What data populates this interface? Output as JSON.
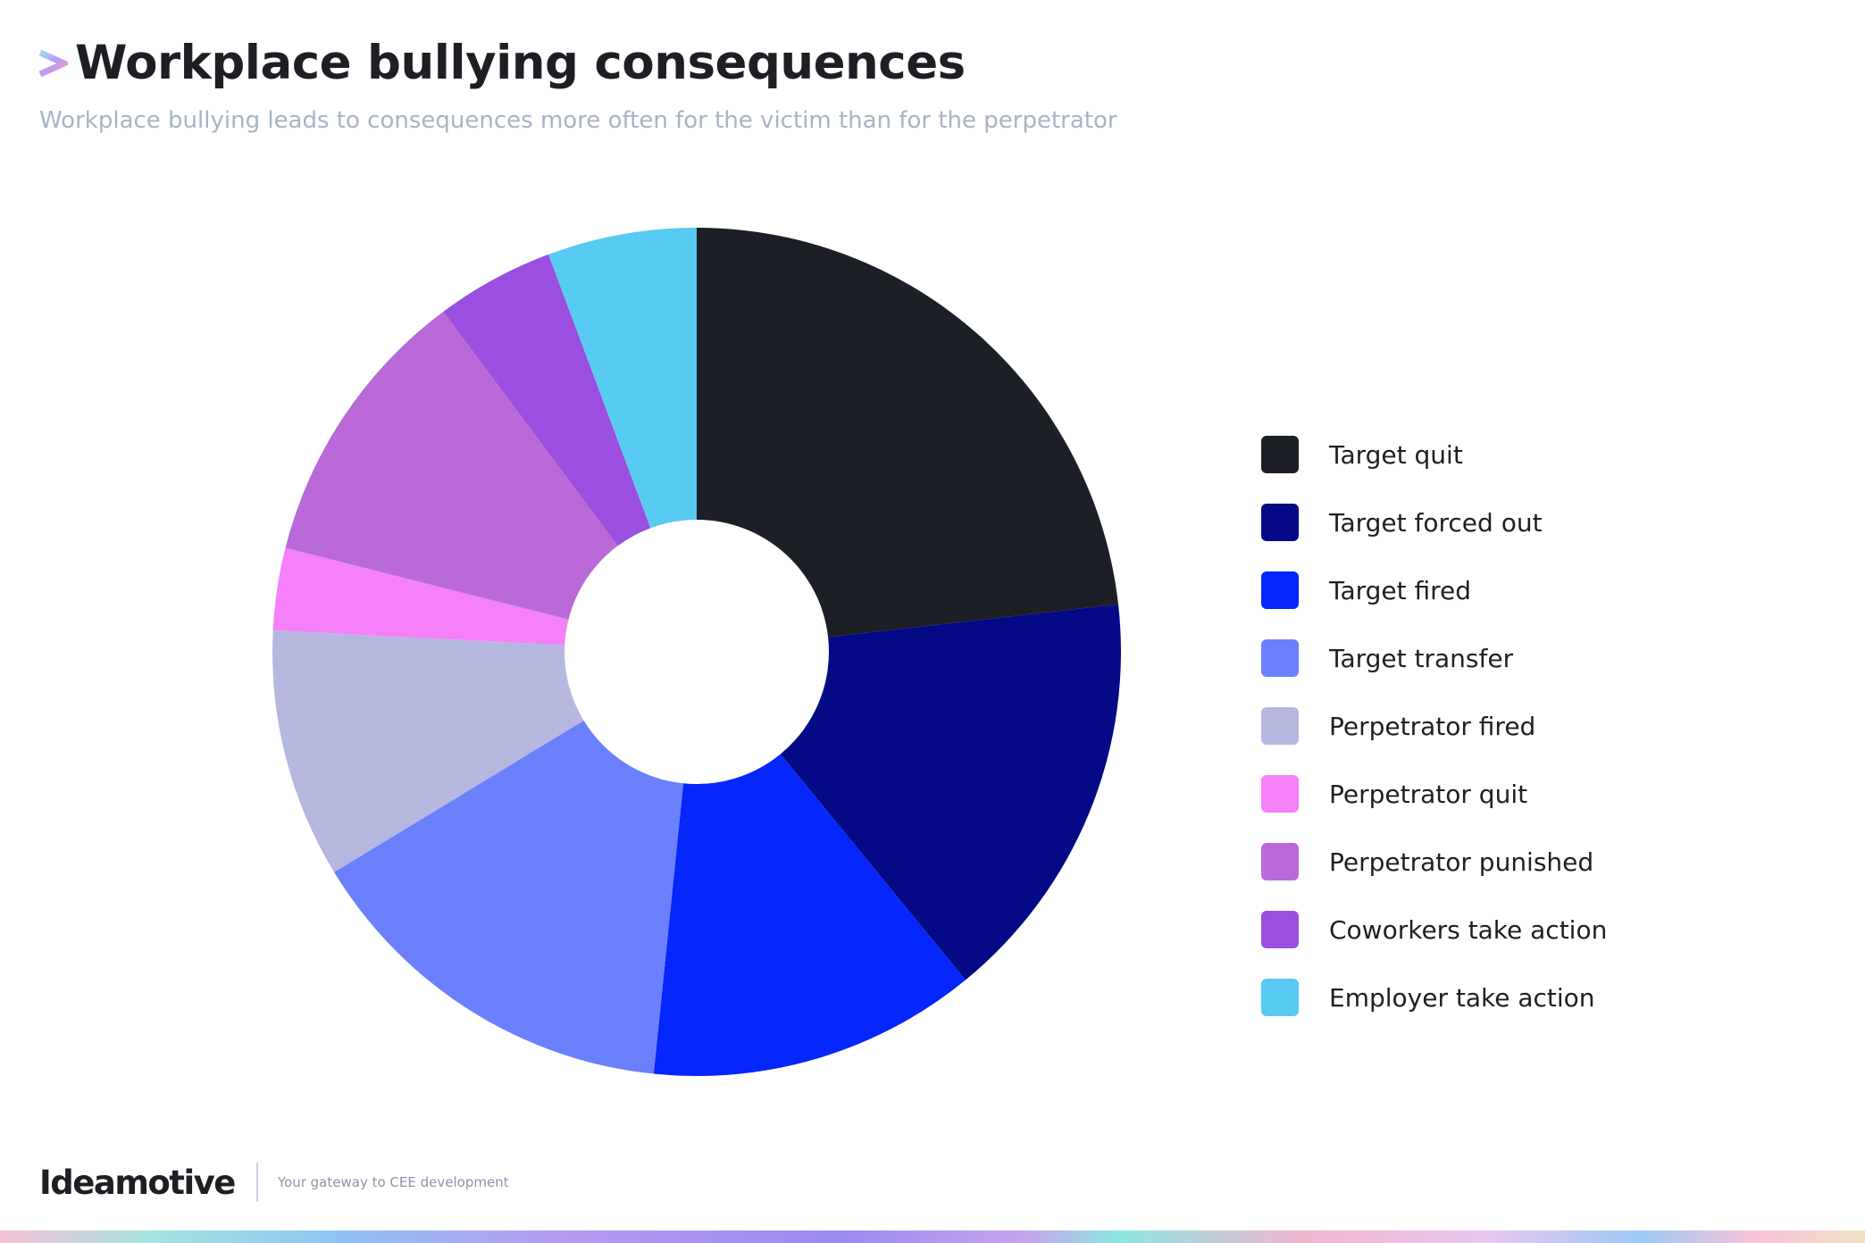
{
  "header": {
    "title": "Workplace bullying consequences",
    "subtitle": "Workplace bullying leads to consequences more often for the victim than for the perpetrator"
  },
  "footer": {
    "brand": "Ideamotive",
    "tagline": "Your gateway to CEE development"
  },
  "chart_data": {
    "type": "pie",
    "style": "donut",
    "title": "Workplace bullying consequences",
    "subtitle": "Workplace bullying leads to consequences more often for the victim than for the perpetrator",
    "legend_position": "right",
    "categories": [
      "Target quit",
      "Target forced out",
      "Target fired",
      "Target transfer",
      "Perpetrator fired",
      "Perpetrator quit",
      "Perpetrator punished",
      "Coworkers take action",
      "Employer take action"
    ],
    "values": [
      23.7,
      16.2,
      12.8,
      15.0,
      9.7,
      3.2,
      11.1,
      4.6,
      5.8
    ],
    "colors": [
      "#1d1f26",
      "#040a86",
      "#0527fb",
      "#6b80fd",
      "#b6b7df",
      "#f580f8",
      "#b96ad8",
      "#9a4fe0",
      "#57cbf1"
    ]
  }
}
